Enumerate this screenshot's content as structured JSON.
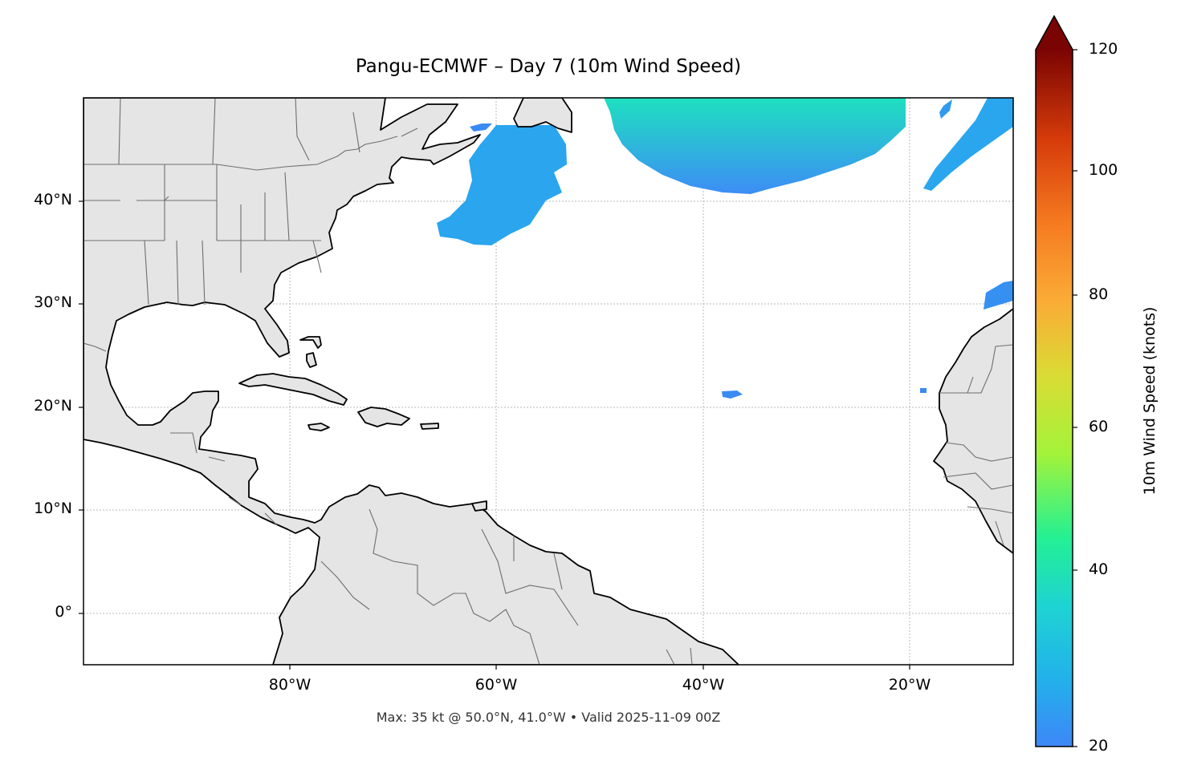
{
  "title": "Pangu-ECMWF – Day 7 (10m Wind Speed)",
  "footer": "Max: 35 kt @ 50.0°N, 41.0°W • Valid 2025-11-09 00Z",
  "map": {
    "extent": {
      "lon_min": -100,
      "lon_max": -10,
      "lat_min": -5,
      "lat_max": 50
    },
    "lat_ticks": [
      {
        "value": 40,
        "label": "40°N"
      },
      {
        "value": 30,
        "label": "30°N"
      },
      {
        "value": 20,
        "label": "20°N"
      },
      {
        "value": 10,
        "label": "10°N"
      },
      {
        "value": 0,
        "label": "0°"
      }
    ],
    "lon_ticks": [
      {
        "value": -80,
        "label": "80°W"
      },
      {
        "value": -60,
        "label": "60°W"
      },
      {
        "value": -40,
        "label": "40°W"
      },
      {
        "value": -20,
        "label": "20°W"
      }
    ],
    "land_color": "#e5e5e5",
    "coast_color": "#000000",
    "border_color": "#6e6e6e",
    "grid_color": "#b8b8b8",
    "wind_fields": [
      {
        "region": "north-central Atlantic",
        "max_kt": 35
      },
      {
        "region": "off Nova Scotia",
        "max_kt": 27
      },
      {
        "region": "northeast Atlantic",
        "max_kt": 25
      },
      {
        "region": "near Madeira",
        "max_kt": 21
      },
      {
        "region": "central Atlantic",
        "max_kt": 20
      }
    ]
  },
  "colorbar": {
    "label": "10m Wind Speed (knots)",
    "min": 20,
    "max": 120,
    "ticks": [
      {
        "value": 20,
        "label": "20"
      },
      {
        "value": 40,
        "label": "40"
      },
      {
        "value": 60,
        "label": "60"
      },
      {
        "value": 80,
        "label": "80"
      },
      {
        "value": 100,
        "label": "100"
      },
      {
        "value": 120,
        "label": "120"
      }
    ],
    "extend": "max",
    "colormap": [
      "#3d87f7",
      "#1ed3d3",
      "#24f093",
      "#a3f33a",
      "#d9dc34",
      "#fbab36",
      "#f57b21",
      "#d63c0a",
      "#a21504",
      "#6b0000"
    ]
  }
}
